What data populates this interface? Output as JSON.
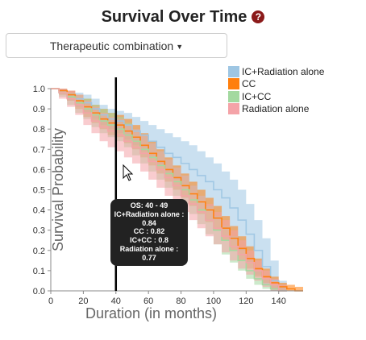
{
  "header": {
    "title": "Survival Over Time",
    "help_icon": "question-circle-icon"
  },
  "controls": {
    "group_select_label": "Therapeutic combination"
  },
  "tooltip": {
    "range": "OS: 40 - 49",
    "lines": [
      "IC+Radiation alone : 0.84",
      "CC : 0.82",
      "IC+CC : 0.8",
      "Radiation alone : 0.77"
    ]
  },
  "colors": {
    "accent": "#8b1a1a"
  },
  "chart_data": {
    "type": "area",
    "title": "",
    "xlabel": "Duration (in months)",
    "ylabel": "Survival Probability",
    "xlim": [
      0,
      155
    ],
    "ylim": [
      0,
      1
    ],
    "xticks": [
      "0",
      "20",
      "40",
      "60",
      "80",
      "100",
      "120",
      "140"
    ],
    "yticks": [
      "0.0",
      "0.1",
      "0.2",
      "0.3",
      "0.4",
      "0.5",
      "0.6",
      "0.7",
      "0.8",
      "0.9",
      "1.0"
    ],
    "marker_x": 40,
    "legend_position": "top-right",
    "series": [
      {
        "name": "IC+Radiation alone",
        "color": "#9ec6e3",
        "x": [
          0,
          5,
          10,
          15,
          20,
          25,
          30,
          35,
          40,
          45,
          50,
          55,
          60,
          65,
          70,
          75,
          80,
          85,
          90,
          95,
          100,
          105,
          110,
          115,
          120,
          125,
          130,
          135,
          140
        ],
        "y": [
          1.0,
          0.99,
          0.97,
          0.95,
          0.93,
          0.9,
          0.87,
          0.85,
          0.84,
          0.82,
          0.79,
          0.77,
          0.74,
          0.71,
          0.68,
          0.66,
          0.63,
          0.6,
          0.57,
          0.54,
          0.5,
          0.46,
          0.41,
          0.35,
          0.28,
          0.2,
          0.12,
          0.05,
          0.0
        ],
        "lower": [
          1.0,
          0.97,
          0.94,
          0.91,
          0.88,
          0.85,
          0.82,
          0.8,
          0.78,
          0.75,
          0.72,
          0.69,
          0.66,
          0.62,
          0.58,
          0.55,
          0.52,
          0.49,
          0.45,
          0.41,
          0.36,
          0.31,
          0.26,
          0.2,
          0.14,
          0.08,
          0.03,
          0.0,
          0.0
        ],
        "upper": [
          1.0,
          1.0,
          0.99,
          0.98,
          0.97,
          0.95,
          0.92,
          0.9,
          0.89,
          0.88,
          0.86,
          0.84,
          0.82,
          0.8,
          0.78,
          0.76,
          0.74,
          0.72,
          0.69,
          0.66,
          0.63,
          0.59,
          0.55,
          0.5,
          0.43,
          0.35,
          0.26,
          0.15,
          0.05
        ]
      },
      {
        "name": "CC",
        "color": "#ff7f0e",
        "x": [
          0,
          5,
          10,
          15,
          20,
          25,
          30,
          35,
          40,
          45,
          50,
          55,
          60,
          65,
          70,
          75,
          80,
          85,
          90,
          95,
          100,
          105,
          110,
          115,
          120,
          125,
          130,
          135,
          140,
          145,
          150
        ],
        "y": [
          1.0,
          0.99,
          0.97,
          0.94,
          0.91,
          0.88,
          0.85,
          0.83,
          0.82,
          0.79,
          0.76,
          0.72,
          0.68,
          0.64,
          0.6,
          0.56,
          0.52,
          0.48,
          0.44,
          0.4,
          0.36,
          0.31,
          0.26,
          0.21,
          0.16,
          0.11,
          0.07,
          0.04,
          0.02,
          0.01,
          0.0
        ],
        "lower": [
          1.0,
          0.97,
          0.94,
          0.9,
          0.86,
          0.83,
          0.8,
          0.77,
          0.76,
          0.73,
          0.7,
          0.66,
          0.62,
          0.58,
          0.54,
          0.5,
          0.46,
          0.42,
          0.38,
          0.34,
          0.3,
          0.25,
          0.2,
          0.15,
          0.11,
          0.07,
          0.04,
          0.01,
          0.0,
          0.0,
          0.0
        ],
        "upper": [
          1.0,
          1.0,
          0.99,
          0.97,
          0.95,
          0.92,
          0.9,
          0.88,
          0.87,
          0.85,
          0.82,
          0.78,
          0.74,
          0.7,
          0.66,
          0.62,
          0.58,
          0.54,
          0.5,
          0.46,
          0.42,
          0.37,
          0.32,
          0.27,
          0.22,
          0.16,
          0.11,
          0.07,
          0.04,
          0.03,
          0.02
        ]
      },
      {
        "name": "IC+CC",
        "color": "#a3d9a0",
        "x": [
          0,
          5,
          10,
          15,
          20,
          25,
          30,
          35,
          40,
          45,
          50,
          55,
          60,
          65,
          70,
          75,
          80,
          85,
          90,
          95,
          100,
          105,
          110,
          115,
          120,
          125,
          130,
          135,
          140
        ],
        "y": [
          1.0,
          0.98,
          0.96,
          0.93,
          0.9,
          0.87,
          0.84,
          0.82,
          0.8,
          0.77,
          0.74,
          0.7,
          0.66,
          0.62,
          0.58,
          0.54,
          0.5,
          0.45,
          0.4,
          0.35,
          0.3,
          0.25,
          0.2,
          0.15,
          0.1,
          0.06,
          0.03,
          0.01,
          0.0
        ],
        "lower": [
          1.0,
          0.96,
          0.92,
          0.88,
          0.85,
          0.81,
          0.78,
          0.76,
          0.74,
          0.71,
          0.67,
          0.63,
          0.59,
          0.55,
          0.51,
          0.47,
          0.43,
          0.38,
          0.33,
          0.28,
          0.23,
          0.18,
          0.14,
          0.1,
          0.06,
          0.03,
          0.01,
          0.0,
          0.0
        ],
        "upper": [
          1.0,
          0.99,
          0.98,
          0.97,
          0.95,
          0.92,
          0.9,
          0.88,
          0.86,
          0.83,
          0.8,
          0.77,
          0.73,
          0.69,
          0.65,
          0.61,
          0.57,
          0.52,
          0.47,
          0.42,
          0.37,
          0.32,
          0.27,
          0.21,
          0.15,
          0.1,
          0.06,
          0.03,
          0.02
        ]
      },
      {
        "name": "Radiation alone",
        "color": "#f4a3a8",
        "x": [
          0,
          5,
          10,
          15,
          20,
          25,
          30,
          35,
          40,
          45,
          50,
          55,
          60,
          65,
          70,
          75,
          80,
          85,
          90,
          95,
          100,
          105,
          110,
          115,
          120,
          125,
          130,
          135,
          140
        ],
        "y": [
          1.0,
          0.98,
          0.95,
          0.92,
          0.88,
          0.84,
          0.81,
          0.79,
          0.77,
          0.74,
          0.71,
          0.68,
          0.64,
          0.6,
          0.56,
          0.52,
          0.47,
          0.43,
          0.39,
          0.35,
          0.31,
          0.27,
          0.22,
          0.18,
          0.14,
          0.1,
          0.06,
          0.03,
          0.0
        ],
        "lower": [
          1.0,
          0.95,
          0.91,
          0.87,
          0.82,
          0.78,
          0.74,
          0.71,
          0.69,
          0.66,
          0.63,
          0.59,
          0.55,
          0.51,
          0.47,
          0.43,
          0.39,
          0.35,
          0.31,
          0.27,
          0.23,
          0.19,
          0.15,
          0.11,
          0.08,
          0.05,
          0.02,
          0.0,
          0.0
        ],
        "upper": [
          1.0,
          1.0,
          0.99,
          0.97,
          0.94,
          0.91,
          0.88,
          0.86,
          0.85,
          0.82,
          0.8,
          0.77,
          0.73,
          0.69,
          0.65,
          0.61,
          0.57,
          0.52,
          0.47,
          0.43,
          0.39,
          0.35,
          0.3,
          0.25,
          0.2,
          0.15,
          0.1,
          0.06,
          0.03
        ]
      }
    ]
  }
}
